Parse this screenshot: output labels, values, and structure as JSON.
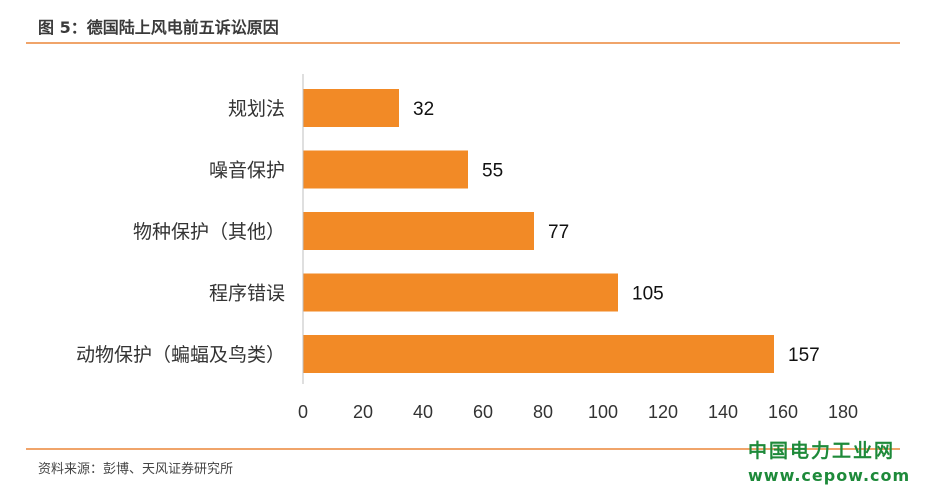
{
  "header": {
    "title": "图 5：德国陆上风电前五诉讼原因"
  },
  "footer": {
    "source": "资料来源：彭博、天风证券研究所"
  },
  "watermark": {
    "name": "中国电力工业网",
    "url": "www.cepow.com"
  },
  "colors": {
    "bar": "#f28a26",
    "rule": "#f0a46a",
    "axis": "#bfbfbf",
    "watermark": "#1e8a3a"
  },
  "chart_data": {
    "type": "bar",
    "orientation": "horizontal",
    "title": "",
    "xlabel": "",
    "ylabel": "",
    "categories": [
      "规划法",
      "噪音保护",
      "物种保护（其他）",
      "程序错误",
      "动物保护（蝙蝠及鸟类）"
    ],
    "values": [
      32,
      55,
      77,
      105,
      157
    ],
    "xlim": [
      0,
      180
    ],
    "x_ticks": [
      0,
      20,
      40,
      60,
      80,
      100,
      120,
      140,
      160,
      180
    ],
    "grid": false,
    "legend": "none",
    "data_labels": true
  }
}
